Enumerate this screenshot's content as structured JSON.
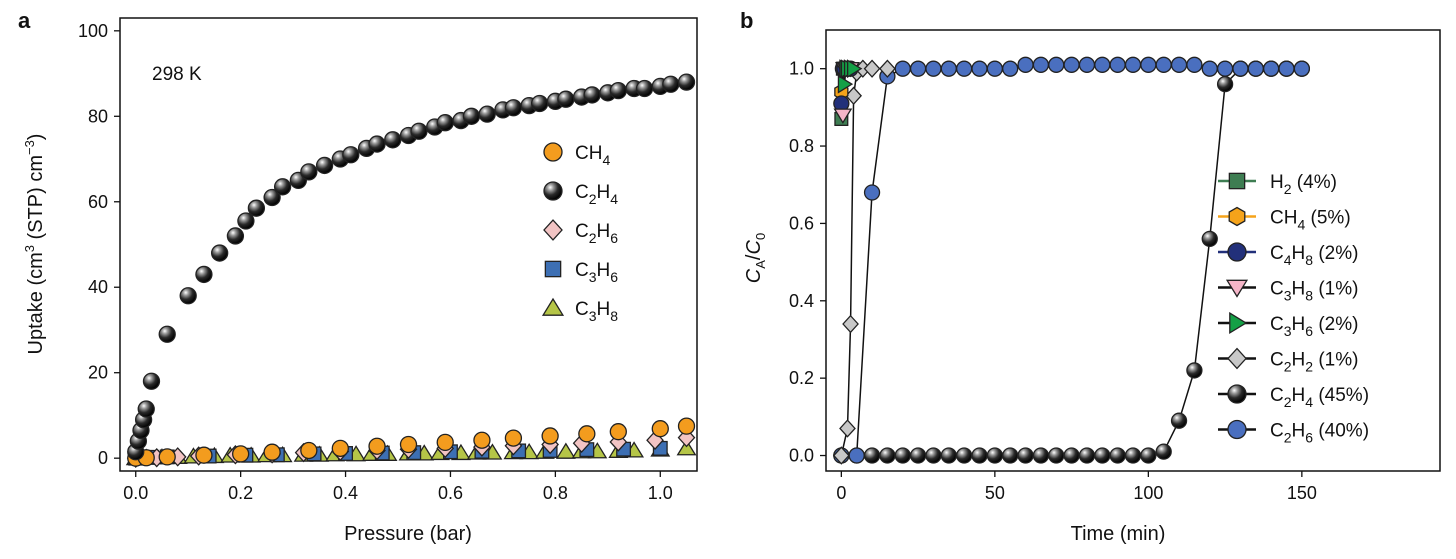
{
  "figure": {
    "panels": [
      "a",
      "b"
    ]
  },
  "chart_data": [
    {
      "panel": "a",
      "type": "scatter",
      "title": "",
      "xlabel": "Pressure (bar)",
      "ylabel": "Uptake (cm³ (STP) cm⁻³)",
      "xlim": [
        -0.03,
        1.07
      ],
      "ylim": [
        -3,
        103
      ],
      "xticks": [
        0.0,
        0.2,
        0.4,
        0.6,
        0.8,
        1.0
      ],
      "xtick_labels": [
        "0.0",
        "0.2",
        "0.4",
        "0.6",
        "0.8",
        "1.0"
      ],
      "yticks": [
        0,
        20,
        40,
        60,
        80,
        100
      ],
      "ytick_labels": [
        "0",
        "20",
        "40",
        "60",
        "80",
        "100"
      ],
      "annotation": "298 K",
      "legend_position": "center-right",
      "series": [
        {
          "name": "CH4",
          "color": "#f39c1e",
          "marker": "circle",
          "x": [
            0.0,
            0.02,
            0.06,
            0.13,
            0.2,
            0.26,
            0.33,
            0.39,
            0.46,
            0.52,
            0.59,
            0.66,
            0.72,
            0.79,
            0.86,
            0.92,
            1.0,
            1.05
          ],
          "y": [
            0.0,
            0.1,
            0.3,
            0.7,
            1.0,
            1.4,
            1.8,
            2.3,
            2.8,
            3.2,
            3.7,
            4.2,
            4.7,
            5.2,
            5.7,
            6.2,
            6.9,
            7.5
          ]
        },
        {
          "name": "C2H4",
          "color": "#1a1a1a",
          "marker": "circle",
          "x": [
            0.0,
            0.005,
            0.01,
            0.015,
            0.02,
            0.03,
            0.06,
            0.1,
            0.13,
            0.16,
            0.19,
            0.21,
            0.23,
            0.26,
            0.28,
            0.31,
            0.33,
            0.36,
            0.39,
            0.41,
            0.44,
            0.46,
            0.49,
            0.52,
            0.54,
            0.57,
            0.59,
            0.62,
            0.64,
            0.67,
            0.7,
            0.72,
            0.75,
            0.77,
            0.8,
            0.82,
            0.85,
            0.87,
            0.9,
            0.92,
            0.95,
            0.97,
            1.0,
            1.02,
            1.05
          ],
          "y": [
            1.5,
            4,
            6.5,
            9,
            11.5,
            18,
            29,
            38,
            43,
            48,
            52,
            55.5,
            58.5,
            61,
            63.5,
            65,
            67,
            68.5,
            70,
            71,
            72.5,
            73.5,
            74.5,
            75.5,
            76.5,
            77.5,
            78.5,
            79,
            80,
            80.5,
            81.5,
            82,
            82.5,
            83,
            83.5,
            84,
            84.5,
            85,
            85.5,
            86,
            86.5,
            86.5,
            87,
            87.5,
            88
          ]
        },
        {
          "name": "C2H6",
          "color": "#f2c4c4",
          "marker": "diamond",
          "x": [
            0.0,
            0.04,
            0.08,
            0.12,
            0.19,
            0.26,
            0.32,
            0.39,
            0.46,
            0.52,
            0.59,
            0.66,
            0.72,
            0.79,
            0.85,
            0.92,
            0.99,
            1.05
          ],
          "y": [
            0.0,
            0.1,
            0.3,
            0.5,
            0.8,
            1.0,
            1.3,
            1.6,
            1.8,
            2.1,
            2.3,
            2.6,
            2.9,
            3.2,
            3.5,
            3.8,
            4.2,
            4.8
          ]
        },
        {
          "name": "C3H6",
          "color": "#3d6fb3",
          "marker": "square",
          "x": [
            0.0,
            0.03,
            0.06,
            0.14,
            0.21,
            0.27,
            0.34,
            0.4,
            0.47,
            0.53,
            0.6,
            0.66,
            0.73,
            0.79,
            0.86,
            0.93,
            1.0
          ],
          "y": [
            0.0,
            0.2,
            0.3,
            0.5,
            0.7,
            0.8,
            1.0,
            1.1,
            1.2,
            1.3,
            1.5,
            1.6,
            1.7,
            1.8,
            2.0,
            2.1,
            2.3
          ]
        },
        {
          "name": "C3H8",
          "color": "#b5c547",
          "marker": "triangle",
          "x": [
            0.0,
            0.02,
            0.05,
            0.08,
            0.11,
            0.15,
            0.18,
            0.22,
            0.25,
            0.28,
            0.32,
            0.35,
            0.38,
            0.42,
            0.45,
            0.48,
            0.52,
            0.55,
            0.58,
            0.62,
            0.65,
            0.68,
            0.72,
            0.75,
            0.78,
            0.82,
            0.85,
            0.88,
            0.92,
            0.95,
            1.0,
            1.05
          ],
          "y": [
            0.0,
            0.1,
            0.2,
            0.3,
            0.4,
            0.5,
            0.6,
            0.6,
            0.7,
            0.7,
            0.8,
            0.8,
            0.9,
            0.9,
            1.0,
            1.0,
            1.1,
            1.1,
            1.2,
            1.2,
            1.3,
            1.3,
            1.4,
            1.4,
            1.5,
            1.5,
            1.6,
            1.6,
            1.7,
            1.8,
            2.0,
            2.3
          ]
        }
      ]
    },
    {
      "panel": "b",
      "type": "line",
      "title": "",
      "xlabel": "Time (min)",
      "ylabel": "CA/C0",
      "xlim": [
        -5,
        195
      ],
      "ylim": [
        -0.04,
        1.1
      ],
      "xticks": [
        0,
        50,
        100,
        150
      ],
      "xtick_labels": [
        "0",
        "50",
        "100",
        "150"
      ],
      "yticks": [
        0.0,
        0.2,
        0.4,
        0.6,
        0.8,
        1.0
      ],
      "ytick_labels": [
        "0.0",
        "0.2",
        "0.4",
        "0.6",
        "0.8",
        "1.0"
      ],
      "legend_position": "center-right",
      "series": [
        {
          "name": "H2 (4%)",
          "color": "#3e7d52",
          "marker": "square",
          "x": [
            0,
            0.5,
            1,
            1.5,
            2
          ],
          "y": [
            0.87,
            1.0,
            1.0,
            1.0,
            1.0
          ]
        },
        {
          "name": "CH4 (5%)",
          "color": "#f5a31a",
          "marker": "hexagon",
          "x": [
            0,
            0.5,
            1,
            1.5,
            2
          ],
          "y": [
            0.94,
            1.0,
            1.0,
            1.0,
            1.0
          ]
        },
        {
          "name": "C4H8 (2%)",
          "color": "#22307a",
          "marker": "circle",
          "x": [
            0,
            0.5,
            1,
            2,
            3
          ],
          "y": [
            0.91,
            1.0,
            1.0,
            1.0,
            1.0
          ]
        },
        {
          "name": "C3H8 (1%)",
          "color": "#f5b5c8",
          "marker": "triangle-down",
          "x": [
            0.5,
            1,
            1.5,
            2,
            3
          ],
          "y": [
            0.88,
            1.0,
            1.0,
            1.0,
            1.0
          ]
        },
        {
          "name": "C3H6 (2%)",
          "color": "#14a046",
          "marker": "triangle-right",
          "x": [
            1,
            1.5,
            2,
            3,
            4
          ],
          "y": [
            0.96,
            1.0,
            1.0,
            1.0,
            1.0
          ]
        },
        {
          "name": "C2H2 (1%)",
          "color": "#c8c8c8",
          "marker": "diamond",
          "x": [
            0,
            2,
            3,
            4,
            5,
            7,
            10,
            15
          ],
          "y": [
            0.0,
            0.07,
            0.34,
            0.93,
            0.99,
            1.0,
            1.0,
            1.0
          ]
        },
        {
          "name": "C2H4 (45%)",
          "color": "#1a1a1a",
          "marker": "circle",
          "x": [
            0,
            5,
            10,
            15,
            20,
            25,
            30,
            35,
            40,
            45,
            50,
            55,
            60,
            65,
            70,
            75,
            80,
            85,
            90,
            95,
            100,
            105,
            110,
            115,
            120,
            125,
            130,
            135,
            140,
            145,
            150
          ],
          "y": [
            0.0,
            0.0,
            0.0,
            0.0,
            0.0,
            0.0,
            0.0,
            0.0,
            0.0,
            0.0,
            0.0,
            0.0,
            0.0,
            0.0,
            0.0,
            0.0,
            0.0,
            0.0,
            0.0,
            0.0,
            0.0,
            0.01,
            0.09,
            0.22,
            0.56,
            0.96,
            1.0,
            1.0,
            1.0,
            1.0,
            1.0
          ]
        },
        {
          "name": "C2H6 (40%)",
          "color": "#4a6fbf",
          "marker": "circle",
          "x": [
            0,
            5,
            10,
            15,
            20,
            25,
            30,
            35,
            40,
            45,
            50,
            55,
            60,
            65,
            70,
            75,
            80,
            85,
            90,
            95,
            100,
            105,
            110,
            115,
            120,
            125,
            130,
            135,
            140,
            145,
            150
          ],
          "y": [
            0.0,
            0.0,
            0.68,
            0.98,
            1.0,
            1.0,
            1.0,
            1.0,
            1.0,
            1.0,
            1.0,
            1.0,
            1.01,
            1.01,
            1.01,
            1.01,
            1.01,
            1.01,
            1.01,
            1.01,
            1.01,
            1.01,
            1.01,
            1.01,
            1.0,
            1.0,
            1.0,
            1.0,
            1.0,
            1.0,
            1.0
          ]
        }
      ]
    }
  ]
}
